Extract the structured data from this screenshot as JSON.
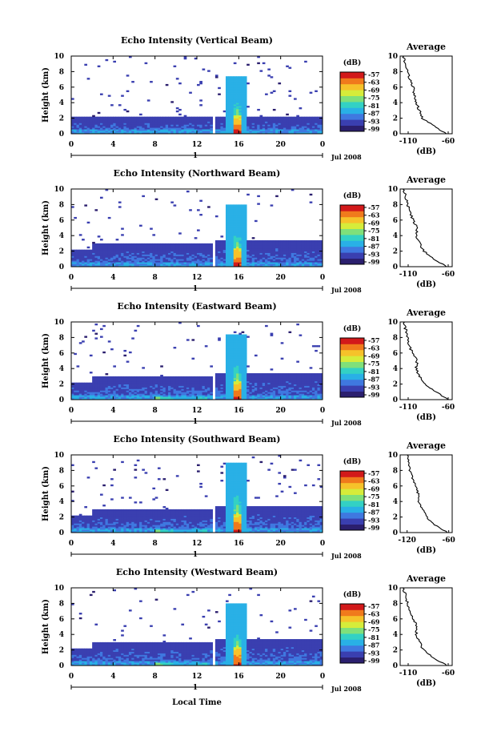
{
  "page": {
    "xlabel": "Local Time"
  },
  "chart_data": [
    {
      "type": "heatmap",
      "title": "Echo Intensity (Vertical Beam)",
      "ylabel": "Height (km)",
      "xlim": [
        0,
        24
      ],
      "ylim": [
        0,
        10
      ],
      "xticks": [
        "0",
        "4",
        "8",
        "12",
        "16",
        "20",
        "0"
      ],
      "yticks": [
        "0",
        "2",
        "4",
        "6",
        "8",
        "10"
      ],
      "day_label": "1",
      "month_label": "Jul 2008",
      "colorbar": {
        "label": "(dB)",
        "ticks": [
          "-57",
          "-63",
          "-69",
          "-75",
          "-81",
          "-87",
          "-93",
          "-99"
        ]
      },
      "profile": {
        "title": "Average",
        "xlabel": "(dB)",
        "xlim": [
          -120,
          -55
        ],
        "xticks": [
          "-110",
          "-60"
        ],
        "yticks": [
          "0",
          "2",
          "4",
          "6",
          "8",
          "10"
        ],
        "height_km": [
          0,
          1,
          2,
          3,
          4,
          5,
          6,
          7,
          8,
          9,
          10
        ],
        "db": [
          -62,
          -78,
          -92,
          -96,
          -100,
          -102,
          -104,
          -108,
          -110,
          -113,
          -116
        ]
      }
    },
    {
      "type": "heatmap",
      "title": "Echo Intensity (Northward Beam)",
      "ylabel": "Height (km)",
      "xlim": [
        0,
        24
      ],
      "ylim": [
        0,
        10
      ],
      "xticks": [
        "0",
        "4",
        "8",
        "12",
        "16",
        "20",
        "0"
      ],
      "yticks": [
        "0",
        "2",
        "4",
        "6",
        "8",
        "10"
      ],
      "day_label": "1",
      "month_label": "Jul 2008",
      "colorbar": {
        "label": "(dB)",
        "ticks": [
          "-57",
          "-63",
          "-69",
          "-75",
          "-81",
          "-87",
          "-93",
          "-99"
        ]
      },
      "profile": {
        "title": "Average",
        "xlabel": "(dB)",
        "xlim": [
          -120,
          -55
        ],
        "xticks": [
          "-110",
          "-60"
        ],
        "yticks": [
          "0",
          "2",
          "4",
          "6",
          "8",
          "10"
        ],
        "height_km": [
          0,
          1,
          2,
          3,
          4,
          5,
          6,
          7,
          8,
          9,
          10
        ],
        "db": [
          -62,
          -78,
          -90,
          -96,
          -100,
          -99,
          -104,
          -108,
          -111,
          -113,
          -116
        ]
      }
    },
    {
      "type": "heatmap",
      "title": "Echo Intensity (Eastward Beam)",
      "ylabel": "Height (km)",
      "xlim": [
        0,
        24
      ],
      "ylim": [
        0,
        10
      ],
      "xticks": [
        "0",
        "4",
        "8",
        "12",
        "16",
        "20",
        "0"
      ],
      "yticks": [
        "0",
        "2",
        "4",
        "6",
        "8",
        "10"
      ],
      "day_label": "1",
      "month_label": "Jul 2008",
      "colorbar": {
        "label": "(dB)",
        "ticks": [
          "-57",
          "-63",
          "-69",
          "-75",
          "-81",
          "-87",
          "-93",
          "-99"
        ]
      },
      "profile": {
        "title": "Average",
        "xlabel": "(dB)",
        "xlim": [
          -120,
          -55
        ],
        "xticks": [
          "-110",
          "-60"
        ],
        "yticks": [
          "0",
          "2",
          "4",
          "6",
          "8",
          "10"
        ],
        "height_km": [
          0,
          1,
          2,
          3,
          4,
          5,
          6,
          7,
          8,
          9,
          10
        ],
        "db": [
          -60,
          -76,
          -90,
          -96,
          -100,
          -99,
          -105,
          -109,
          -111,
          -113,
          -116
        ]
      }
    },
    {
      "type": "heatmap",
      "title": "Echo Intensity (Southward Beam)",
      "ylabel": "Height (km)",
      "xlim": [
        0,
        24
      ],
      "ylim": [
        0,
        10
      ],
      "xticks": [
        "0",
        "4",
        "8",
        "12",
        "16",
        "20",
        "0"
      ],
      "yticks": [
        "0",
        "2",
        "4",
        "6",
        "8",
        "10"
      ],
      "day_label": "1",
      "month_label": "Jul 2008",
      "colorbar": {
        "label": "(dB)",
        "ticks": [
          "-57",
          "-63",
          "-69",
          "-75",
          "-81",
          "-87",
          "-93",
          "-99"
        ]
      },
      "profile": {
        "title": "Average",
        "xlabel": "(dB)",
        "xlim": [
          -130,
          -55
        ],
        "xticks": [
          "-120",
          "-60"
        ],
        "yticks": [
          "0",
          "2",
          "4",
          "6",
          "8",
          "10"
        ],
        "height_km": [
          0,
          1,
          2,
          3,
          4,
          5,
          6,
          7,
          8,
          9,
          10
        ],
        "db": [
          -62,
          -80,
          -92,
          -98,
          -103,
          -104,
          -108,
          -112,
          -116,
          -118,
          -120
        ]
      }
    },
    {
      "type": "heatmap",
      "title": "Echo Intensity (Westward Beam)",
      "ylabel": "Height (km)",
      "xlim": [
        0,
        24
      ],
      "ylim": [
        0,
        10
      ],
      "xticks": [
        "0",
        "4",
        "8",
        "12",
        "16",
        "20",
        "0"
      ],
      "yticks": [
        "0",
        "2",
        "4",
        "6",
        "8",
        "10"
      ],
      "day_label": "1",
      "month_label": "Jul 2008",
      "colorbar": {
        "label": "(dB)",
        "ticks": [
          "-57",
          "-63",
          "-69",
          "-75",
          "-81",
          "-87",
          "-93",
          "-99"
        ]
      },
      "profile": {
        "title": "Average",
        "xlabel": "(dB)",
        "xlim": [
          -120,
          -55
        ],
        "xticks": [
          "-110",
          "-60"
        ],
        "yticks": [
          "0",
          "2",
          "4",
          "6",
          "8",
          "10"
        ],
        "height_km": [
          0,
          1,
          2,
          3,
          4,
          5,
          6,
          7,
          8,
          9,
          10
        ],
        "db": [
          -62,
          -79,
          -91,
          -96,
          -100,
          -99,
          -104,
          -108,
          -111,
          -113,
          -116
        ]
      }
    }
  ]
}
